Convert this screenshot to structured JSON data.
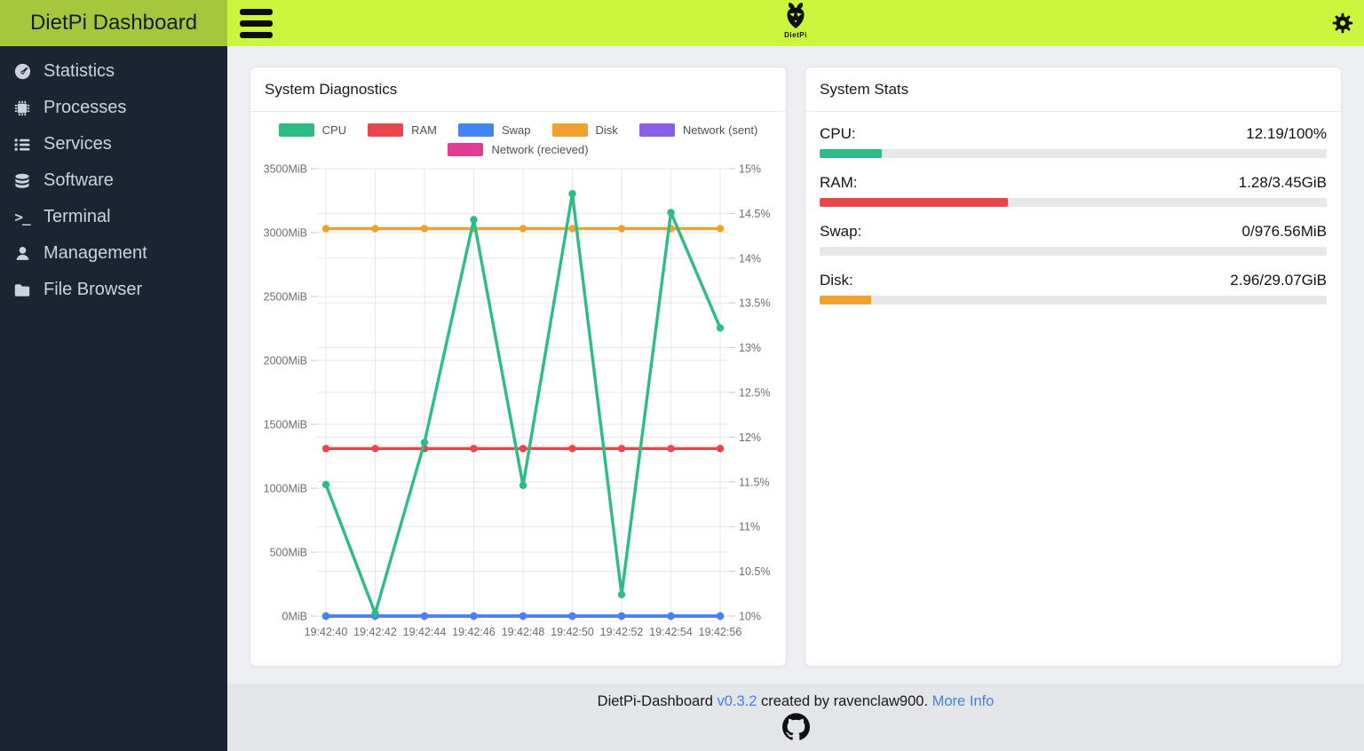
{
  "sidebar": {
    "title": "DietPi Dashboard",
    "items": [
      {
        "label": "Statistics",
        "icon": "gauge-icon"
      },
      {
        "label": "Processes",
        "icon": "microchip-icon"
      },
      {
        "label": "Services",
        "icon": "list-icon"
      },
      {
        "label": "Software",
        "icon": "database-icon"
      },
      {
        "label": "Terminal",
        "icon": "terminal-icon"
      },
      {
        "label": "Management",
        "icon": "user-icon"
      },
      {
        "label": "File Browser",
        "icon": "folder-icon"
      }
    ]
  },
  "topbar": {
    "logo_text": "DietPi",
    "icons": [
      "menu-icon",
      "dietpi-bee-logo",
      "settings-gear-icon"
    ]
  },
  "diagnostics": {
    "title": "System Diagnostics"
  },
  "stats": {
    "title": "System Stats",
    "rows": [
      {
        "label": "CPU:",
        "value": "12.19/100%",
        "percent": 12.19,
        "color": "#2cbc84"
      },
      {
        "label": "RAM:",
        "value": "1.28/3.45GiB",
        "percent": 37.1,
        "color": "#e8464d"
      },
      {
        "label": "Swap:",
        "value": "0/976.56MiB",
        "percent": 0,
        "color": "#4384f2"
      },
      {
        "label": "Disk:",
        "value": "2.96/29.07GiB",
        "percent": 10.18,
        "color": "#f0a02e"
      }
    ]
  },
  "footer": {
    "text_prefix": "DietPi-Dashboard ",
    "version_link": "v0.3.2",
    "text_middle": " created by ravenclaw900. ",
    "more_info_link": "More Info"
  },
  "chart_data": {
    "type": "line",
    "x": [
      "19:42:40",
      "19:42:42",
      "19:42:44",
      "19:42:46",
      "19:42:48",
      "19:42:50",
      "19:42:52",
      "19:42:54",
      "19:42:56"
    ],
    "grid": true,
    "legend_position": "top",
    "left_axis": {
      "unit": "MiB",
      "min": 0,
      "max": 3500,
      "ticks": [
        {
          "value": 3500,
          "label": "3500MiB"
        },
        {
          "value": 3000,
          "label": "3000MiB"
        },
        {
          "value": 2500,
          "label": "2500MiB"
        },
        {
          "value": 2000,
          "label": "2000MiB"
        },
        {
          "value": 1500,
          "label": "1500MiB"
        },
        {
          "value": 1000,
          "label": "1000MiB"
        },
        {
          "value": 500,
          "label": "500MiB"
        },
        {
          "value": 0,
          "label": "0MiB"
        }
      ]
    },
    "right_axis": {
      "unit": "%",
      "min": 10,
      "max": 15,
      "ticks": [
        {
          "value": 15,
          "label": "15%"
        },
        {
          "value": 14.5,
          "label": "14.5%"
        },
        {
          "value": 14,
          "label": "14%"
        },
        {
          "value": 13.5,
          "label": "13.5%"
        },
        {
          "value": 13,
          "label": "13%"
        },
        {
          "value": 12.5,
          "label": "12.5%"
        },
        {
          "value": 12,
          "label": "12%"
        },
        {
          "value": 11.5,
          "label": "11.5%"
        },
        {
          "value": 11,
          "label": "11%"
        },
        {
          "value": 10.5,
          "label": "10.5%"
        },
        {
          "value": 10,
          "label": "10%"
        }
      ]
    },
    "series": [
      {
        "name": "CPU",
        "color": "#2cbc84",
        "axis": "right",
        "values": [
          11.47,
          10.03,
          11.94,
          14.43,
          11.46,
          14.72,
          10.24,
          14.51,
          13.22
        ]
      },
      {
        "name": "RAM",
        "color": "#e8464d",
        "axis": "left",
        "values": [
          1310,
          1310,
          1310,
          1310,
          1310,
          1310,
          1310,
          1310,
          1310
        ]
      },
      {
        "name": "Swap",
        "color": "#4384f2",
        "axis": "left",
        "values": [
          0,
          0,
          0,
          0,
          0,
          0,
          0,
          0,
          0
        ]
      },
      {
        "name": "Disk",
        "color": "#f0a02e",
        "axis": "left",
        "values": [
          3031,
          3031,
          3031,
          3031,
          3031,
          3031,
          3031,
          3031,
          3031
        ]
      },
      {
        "name": "Network (sent)",
        "color": "#8a5fe6",
        "axis": "left",
        "values": [
          0,
          0,
          0,
          0,
          0,
          0,
          0,
          0,
          0
        ]
      },
      {
        "name": "Network (recieved)",
        "color": "#e03d92",
        "axis": "left",
        "values": [
          0,
          0,
          0,
          0,
          0,
          0,
          0,
          0,
          0
        ]
      }
    ]
  }
}
